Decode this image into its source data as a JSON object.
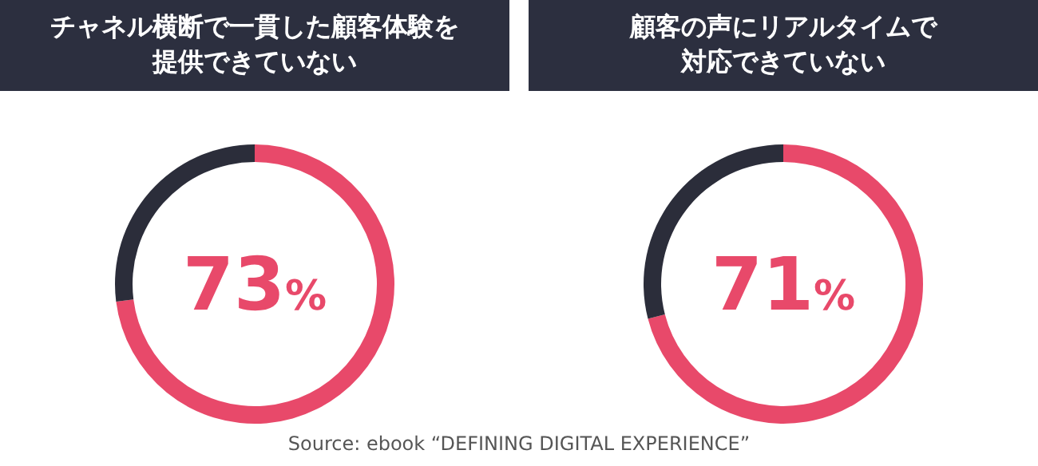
{
  "chart_data": [
    {
      "type": "donut",
      "title": "チャネル横断で一貫した顧客体験を",
      "subtitle": "提供できていない",
      "categories": [
        null,
        null
      ],
      "values": [
        73,
        27
      ],
      "colors": [
        "#e8496a",
        "#2b2d3a"
      ],
      "annotations": [
        "73%"
      ]
    },
    {
      "type": "donut",
      "title": "顧客の声にリアルタイムで",
      "subtitle": "対応できていない",
      "categories": [
        null,
        null
      ],
      "values": [
        71,
        29
      ],
      "colors": [
        "#e8496a",
        "#2b2d3a"
      ],
      "annotations": [
        "71%",
        "Source: ebook “DEFINING DIGITAL EXPERIENCE”"
      ]
    }
  ]
}
